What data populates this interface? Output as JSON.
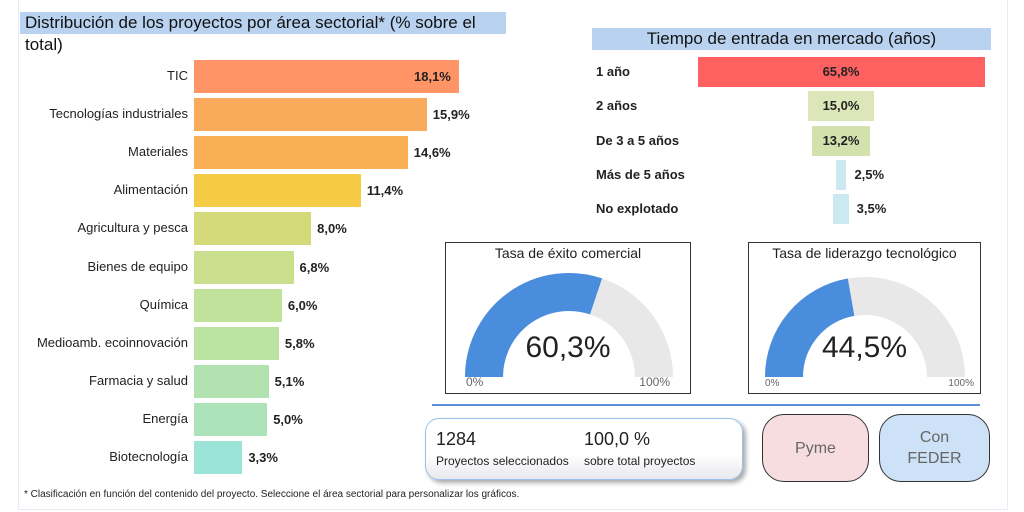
{
  "header": {
    "sector_title": "Distribución de los proyectos por área sectorial* (% sobre el total)",
    "market_title": "Tiempo de entrada en mercado (años)"
  },
  "chart_data": [
    {
      "type": "bar",
      "orientation": "horizontal",
      "title": "Distribución de los proyectos por área sectorial* (% sobre el total)",
      "categories": [
        "TIC",
        "Tecnologías industriales",
        "Materiales",
        "Alimentación",
        "Agricultura y pesca",
        "Bienes de equipo",
        "Química",
        "Medioamb. ecoinnovación",
        "Farmacia y salud",
        "Energía",
        "Biotecnología"
      ],
      "values": [
        18.1,
        15.9,
        14.6,
        11.4,
        8.0,
        6.8,
        6.0,
        5.8,
        5.1,
        5.0,
        3.3
      ],
      "labels": [
        "18,1%",
        "15,9%",
        "14,6%",
        "11,4%",
        "8,0%",
        "6,8%",
        "6,0%",
        "5,8%",
        "5,1%",
        "5,0%",
        "3,3%"
      ],
      "colors": [
        "#ff9466",
        "#f9aa5a",
        "#f9b055",
        "#f5cb45",
        "#d4da7a",
        "#c9df8e",
        "#c1e29a",
        "#bde3a3",
        "#b2e2b0",
        "#ade3b8",
        "#9de4d8"
      ]
    },
    {
      "type": "bar",
      "orientation": "funnel",
      "title": "Tiempo de entrada en mercado (años)",
      "categories": [
        "1 año",
        "2 años",
        "De 3 a 5 años",
        "Más de 5 años",
        "No explotado"
      ],
      "values": [
        65.8,
        15.0,
        13.2,
        2.5,
        3.5
      ],
      "labels": [
        "65,8%",
        "15,0%",
        "13,2%",
        "2,5%",
        "3,5%"
      ],
      "colors": [
        "#ff6060",
        "#dce6b8",
        "#d3e2ad",
        "#cce8f0",
        "#cce8f0"
      ]
    }
  ],
  "gauges": [
    {
      "title": "Tasa de éxito comercial",
      "value": 60.3,
      "label": "60,3%",
      "min": "0%",
      "max": "100%",
      "color": "#4a8ddc",
      "track": "#e8e8e8"
    },
    {
      "title": "Tasa de liderazgo tecnológico",
      "value": 44.5,
      "label": "44,5%",
      "min": "0%",
      "max": "100%",
      "color": "#4a8ddc",
      "track": "#e8e8e8"
    }
  ],
  "stats": {
    "count": "1284",
    "count_label": "Proyectos seleccionados",
    "pct": "100,0 %",
    "pct_label": "sobre total proyectos"
  },
  "buttons": {
    "pyme": "Pyme",
    "feder_1": "Con",
    "feder_2": "FEDER"
  },
  "footnote": "* Clasificación en función del contenido del proyecto. Seleccione el área sectorial para personalizar los gráficos."
}
